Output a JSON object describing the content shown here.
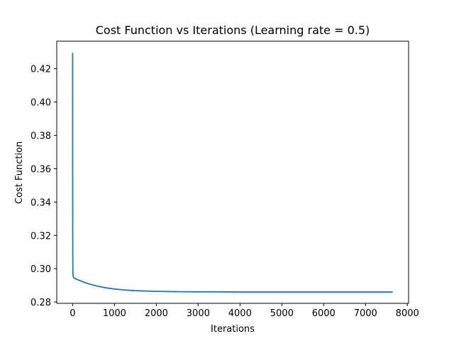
{
  "chart_data": {
    "type": "line",
    "title": "Cost Function vs Iterations (Learning rate = 0.5)",
    "xlabel": "Iterations",
    "ylabel": "Cost Function",
    "xlim": [
      -380,
      8030
    ],
    "ylim": [
      0.2792,
      0.4365
    ],
    "x_ticks": [
      0,
      1000,
      2000,
      3000,
      4000,
      5000,
      6000,
      7000,
      8000
    ],
    "x_tick_labels": [
      "0",
      "1000",
      "2000",
      "3000",
      "4000",
      "5000",
      "6000",
      "7000",
      "8000"
    ],
    "y_ticks": [
      0.28,
      0.3,
      0.32,
      0.34,
      0.36,
      0.38,
      0.4,
      0.42
    ],
    "y_tick_labels": [
      "0.28",
      "0.30",
      "0.32",
      "0.34",
      "0.36",
      "0.38",
      "0.40",
      "0.42"
    ],
    "grid": false,
    "legend": "none",
    "series": [
      {
        "color": "#1f77b4",
        "x": [
          0,
          1,
          3,
          5,
          8,
          12,
          20,
          30,
          50,
          100,
          200,
          300,
          400,
          500,
          600,
          800,
          1000,
          1200,
          1500,
          2000,
          2500,
          3000,
          3500,
          4000,
          5000,
          6000,
          7000,
          7650
        ],
        "y": [
          0.4295,
          0.36,
          0.31,
          0.3,
          0.297,
          0.2955,
          0.2948,
          0.2945,
          0.2942,
          0.2936,
          0.2926,
          0.2916,
          0.2908,
          0.2901,
          0.2895,
          0.2885,
          0.2878,
          0.2873,
          0.2868,
          0.2864,
          0.2862,
          0.2861,
          0.2861,
          0.286,
          0.286,
          0.286,
          0.286,
          0.286
        ]
      }
    ]
  }
}
